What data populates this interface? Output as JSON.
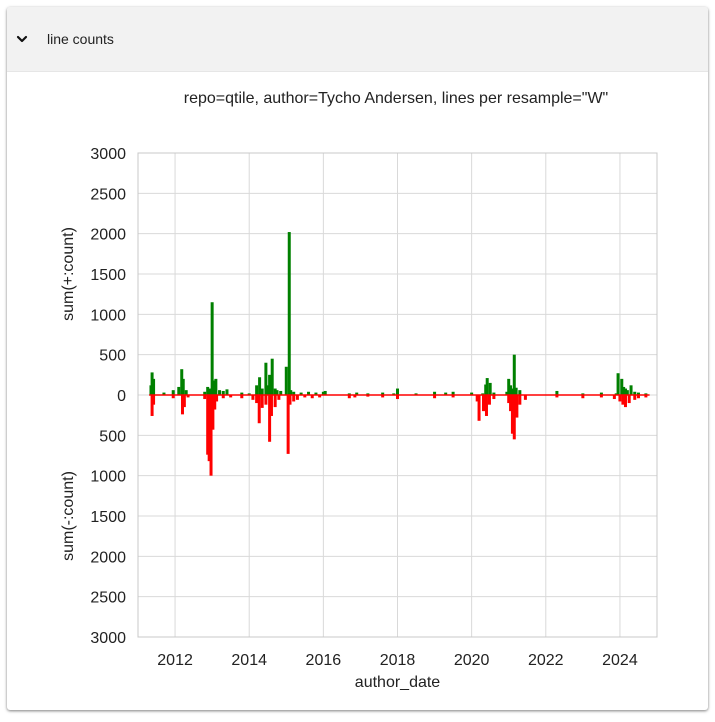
{
  "panel": {
    "title": "line counts",
    "expanded": true
  },
  "chart_data": {
    "type": "bar",
    "title": "repo=qtile, author=Tycho Andersen, lines per resample=\"W\"",
    "xlabel": "author_date",
    "ylabel_top": "sum(+:count)",
    "ylabel_bottom": "sum(-:count)",
    "ylim": [
      -3000,
      3000
    ],
    "y_ticks": [
      3000,
      2500,
      2000,
      1500,
      1000,
      500,
      0,
      -500,
      -1000,
      -1500,
      -2000,
      -2500,
      -3000
    ],
    "y_tick_labels": [
      "3000",
      "2500",
      "2000",
      "1500",
      "1000",
      "500",
      "0",
      "500",
      "1000",
      "1500",
      "2000",
      "2500",
      "3000"
    ],
    "xlim": [
      2011.0,
      2025.0
    ],
    "x_ticks": [
      2012,
      2014,
      2016,
      2018,
      2020,
      2022,
      2024
    ],
    "x_tick_labels": [
      "2012",
      "2014",
      "2016",
      "2018",
      "2020",
      "2022",
      "2024"
    ],
    "grid": true,
    "colors": {
      "added": "#008000",
      "removed": "#ff0000",
      "baseline": "#ff0000"
    },
    "series": [
      {
        "name": "+:count",
        "x": [
          2011.35,
          2011.38,
          2011.42,
          2011.7,
          2011.95,
          2012.1,
          2012.18,
          2012.22,
          2012.3,
          2012.8,
          2012.88,
          2012.95,
          2013.0,
          2013.03,
          2013.06,
          2013.1,
          2013.2,
          2013.3,
          2013.4,
          2013.8,
          2014.0,
          2014.2,
          2014.28,
          2014.35,
          2014.45,
          2014.5,
          2014.55,
          2014.62,
          2014.7,
          2014.75,
          2014.85,
          2015.0,
          2015.08,
          2015.12,
          2015.2,
          2015.4,
          2015.6,
          2015.8,
          2016.0,
          2016.05,
          2016.7,
          2016.9,
          2017.2,
          2017.6,
          2017.9,
          2018.0,
          2018.5,
          2019.0,
          2019.3,
          2019.5,
          2020.0,
          2020.3,
          2020.38,
          2020.42,
          2020.5,
          2020.6,
          2020.95,
          2021.0,
          2021.05,
          2021.1,
          2021.15,
          2021.2,
          2021.3,
          2022.3,
          2023.0,
          2023.5,
          2023.9,
          2023.95,
          2024.05,
          2024.1,
          2024.15,
          2024.2,
          2024.3,
          2024.4,
          2024.5,
          2024.7
        ],
        "values": [
          120,
          280,
          200,
          30,
          60,
          100,
          320,
          200,
          60,
          40,
          100,
          80,
          1150,
          180,
          120,
          200,
          60,
          50,
          70,
          30,
          20,
          120,
          220,
          80,
          400,
          120,
          250,
          450,
          80,
          60,
          50,
          350,
          2020,
          60,
          40,
          30,
          40,
          30,
          40,
          50,
          20,
          30,
          20,
          30,
          20,
          80,
          20,
          40,
          30,
          40,
          30,
          20,
          130,
          210,
          150,
          30,
          40,
          200,
          120,
          80,
          500,
          90,
          60,
          50,
          20,
          30,
          20,
          270,
          200,
          100,
          80,
          60,
          120,
          40,
          30,
          20
        ]
      },
      {
        "name": "-:count",
        "x": [
          2011.38,
          2011.42,
          2011.95,
          2012.2,
          2012.25,
          2012.35,
          2012.8,
          2012.88,
          2012.92,
          2012.97,
          2013.02,
          2013.07,
          2013.12,
          2013.3,
          2013.5,
          2013.8,
          2014.1,
          2014.2,
          2014.27,
          2014.35,
          2014.45,
          2014.55,
          2014.6,
          2014.7,
          2014.8,
          2015.05,
          2015.1,
          2015.2,
          2015.3,
          2015.5,
          2015.7,
          2015.9,
          2016.7,
          2016.85,
          2017.2,
          2017.6,
          2018.0,
          2019.0,
          2019.5,
          2020.15,
          2020.2,
          2020.32,
          2020.4,
          2020.48,
          2020.6,
          2021.0,
          2021.05,
          2021.1,
          2021.15,
          2021.22,
          2021.3,
          2021.45,
          2022.3,
          2023.0,
          2023.5,
          2023.85,
          2024.0,
          2024.08,
          2024.15,
          2024.25,
          2024.4,
          2024.5,
          2024.7
        ],
        "values": [
          -260,
          -120,
          -40,
          -240,
          -150,
          -30,
          -50,
          -740,
          -820,
          -1000,
          -430,
          -180,
          -80,
          -40,
          -30,
          -40,
          -60,
          -100,
          -350,
          -160,
          -120,
          -580,
          -260,
          -150,
          -60,
          -730,
          -120,
          -80,
          -60,
          -30,
          -40,
          -30,
          -40,
          -30,
          -20,
          -30,
          -50,
          -40,
          -30,
          -80,
          -320,
          -200,
          -260,
          -120,
          -50,
          -100,
          -200,
          -480,
          -550,
          -280,
          -120,
          -60,
          -30,
          -40,
          -30,
          -50,
          -80,
          -120,
          -150,
          -100,
          -60,
          -40,
          -30
        ]
      }
    ]
  }
}
